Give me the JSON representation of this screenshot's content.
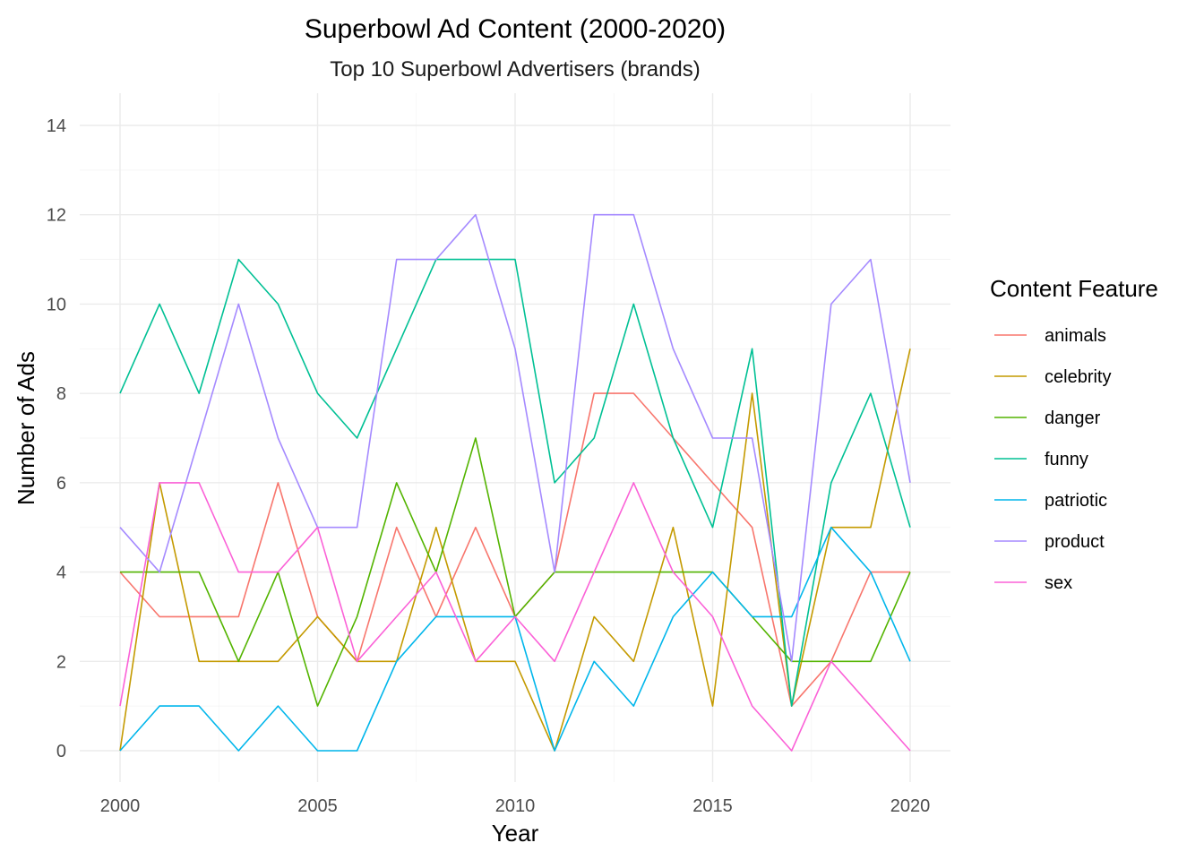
{
  "chart_data": {
    "type": "line",
    "title": "Superbowl Ad Content (2000-2020)",
    "subtitle": "Top 10 Superbowl Advertisers (brands)",
    "xlabel": "Year",
    "ylabel": "Number of Ads",
    "xlim": [
      2000,
      2020
    ],
    "ylim": [
      0,
      14
    ],
    "x_ticks": [
      2000,
      2005,
      2010,
      2015,
      2020
    ],
    "y_ticks": [
      0,
      2,
      4,
      6,
      8,
      10,
      12,
      14
    ],
    "grid": true,
    "legend": {
      "title": "Content Feature",
      "position": "right"
    },
    "x": [
      2000,
      2001,
      2002,
      2003,
      2004,
      2005,
      2006,
      2007,
      2008,
      2009,
      2010,
      2011,
      2012,
      2013,
      2014,
      2015,
      2016,
      2017,
      2018,
      2019,
      2020
    ],
    "series": [
      {
        "name": "animals",
        "color": "#F8766D",
        "values": [
          4,
          3,
          3,
          3,
          6,
          3,
          2,
          5,
          3,
          5,
          3,
          4,
          8,
          8,
          7,
          6,
          5,
          1,
          2,
          4,
          4
        ]
      },
      {
        "name": "celebrity",
        "color": "#C49A00",
        "values": [
          0,
          6,
          2,
          2,
          2,
          3,
          2,
          2,
          5,
          2,
          2,
          0,
          3,
          2,
          5,
          1,
          8,
          1,
          5,
          5,
          9
        ]
      },
      {
        "name": "danger",
        "color": "#53B400",
        "values": [
          4,
          4,
          4,
          2,
          4,
          1,
          3,
          6,
          4,
          7,
          3,
          4,
          4,
          4,
          4,
          4,
          3,
          2,
          2,
          2,
          4
        ]
      },
      {
        "name": "funny",
        "color": "#00C094",
        "values": [
          8,
          10,
          8,
          11,
          10,
          8,
          7,
          9,
          11,
          11,
          11,
          6,
          7,
          10,
          7,
          5,
          9,
          1,
          6,
          8,
          5
        ]
      },
      {
        "name": "patriotic",
        "color": "#00B6EB",
        "values": [
          0,
          1,
          1,
          0,
          1,
          0,
          0,
          2,
          3,
          3,
          3,
          0,
          2,
          1,
          3,
          4,
          3,
          3,
          5,
          4,
          2
        ]
      },
      {
        "name": "product",
        "color": "#A58AFF",
        "values": [
          5,
          4,
          7,
          10,
          7,
          5,
          5,
          11,
          11,
          12,
          9,
          4,
          12,
          12,
          9,
          7,
          7,
          2,
          10,
          11,
          6
        ]
      },
      {
        "name": "sex",
        "color": "#FB61D7",
        "values": [
          1,
          6,
          6,
          4,
          4,
          5,
          2,
          3,
          4,
          2,
          3,
          2,
          4,
          6,
          4,
          3,
          1,
          0,
          2,
          1,
          0
        ]
      }
    ]
  }
}
